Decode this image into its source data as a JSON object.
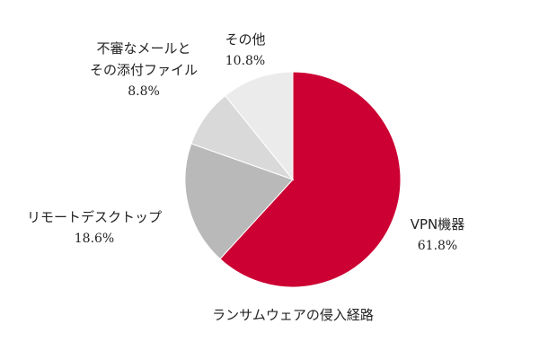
{
  "chart_data": {
    "type": "pie",
    "title": "ランサムウェアの侵入経路",
    "categories": [
      "VPN機器",
      "リモートデスクトップ",
      "不審なメールと\nその添付ファイル",
      "その他"
    ],
    "values": [
      61.8,
      18.6,
      8.8,
      10.8
    ],
    "value_labels": [
      "61.8%",
      "18.6%",
      "8.8%",
      "10.8%"
    ],
    "colors": [
      "#cc0033",
      "#b9b9b9",
      "#d9d9d9",
      "#ebebeb"
    ]
  }
}
